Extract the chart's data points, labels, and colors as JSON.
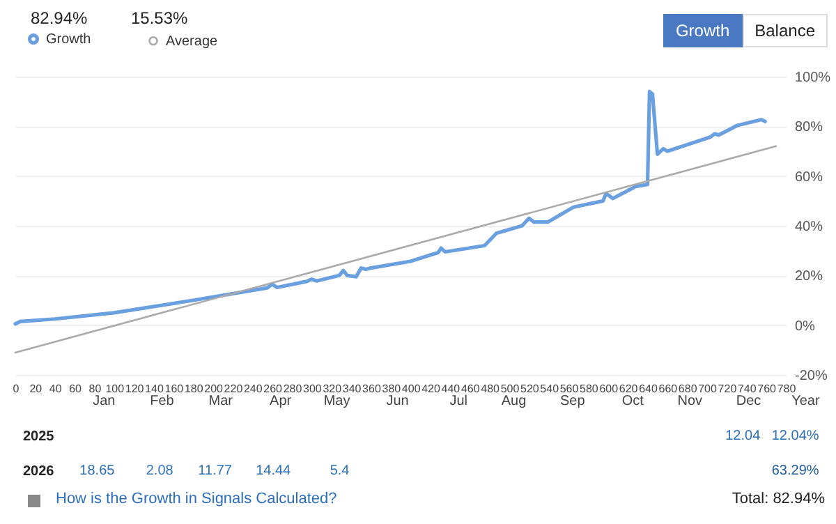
{
  "chart_data": [
    {
      "type": "line",
      "annotations": [
        "82.94%",
        "15.53%",
        "Growth",
        "Balance"
      ],
      "xlim": [
        0,
        780
      ],
      "xticks": [
        0,
        20,
        40,
        60,
        80,
        100,
        120,
        140,
        160,
        180,
        200,
        220,
        240,
        260,
        280,
        300,
        320,
        340,
        360,
        380,
        400,
        420,
        440,
        460,
        480,
        500,
        520,
        540,
        560,
        580,
        600,
        620,
        640,
        660,
        680,
        700,
        720,
        740,
        760,
        780
      ],
      "ylim": [
        -20,
        100
      ],
      "yticks": [
        {
          "value": -20,
          "label": "-20%"
        },
        {
          "value": 0,
          "label": "0%"
        },
        {
          "value": 20,
          "label": "20%"
        },
        {
          "value": 40,
          "label": "40%"
        },
        {
          "value": 60,
          "label": "60%"
        },
        {
          "value": 80,
          "label": "80%"
        },
        {
          "value": 100,
          "label": "100%"
        }
      ],
      "grid": "y",
      "legend": "top left",
      "series": [
        {
          "name": "Growth",
          "color": "#6a9fe0",
          "x": [
            0,
            5,
            40,
            100,
            180,
            255,
            260,
            265,
            295,
            300,
            305,
            328,
            332,
            336,
            345,
            350,
            355,
            360,
            400,
            428,
            431,
            435,
            475,
            487,
            513,
            520,
            525,
            539,
            565,
            595,
            598,
            605,
            628,
            640,
            642,
            645,
            650,
            656,
            660,
            703,
            708,
            712,
            731,
            755,
            759
          ],
          "values": [
            0.5,
            1.5,
            2.5,
            5,
            10,
            15,
            16.5,
            15.2,
            17.6,
            18.5,
            17.8,
            20,
            22,
            20,
            19.5,
            23,
            22.5,
            23,
            25.7,
            29.2,
            31,
            29.5,
            32,
            37,
            40,
            43,
            41.5,
            41.5,
            47.5,
            50,
            53,
            51,
            55.8,
            56.6,
            94,
            93,
            68.8,
            71,
            70,
            75.6,
            77,
            76.5,
            80.4,
            82.7,
            82
          ]
        },
        {
          "name": "Average",
          "color": "#aaaaaa",
          "x": [
            0,
            770
          ],
          "values": [
            -11,
            72
          ]
        }
      ]
    },
    {
      "type": "heatmap",
      "categories": [
        "Jan",
        "Feb",
        "Mar",
        "Apr",
        "May",
        "Jun",
        "Jul",
        "Aug",
        "Sep",
        "Oct",
        "Nov",
        "Dec",
        "Year"
      ],
      "y_categories": [
        "2025",
        "2026"
      ],
      "cells": [
        [
          null,
          null,
          null,
          null,
          null,
          null,
          null,
          null,
          null,
          null,
          null,
          12.04,
          12.04
        ],
        [
          18.65,
          2.08,
          11.77,
          14.44,
          5.4,
          null,
          null,
          null,
          null,
          null,
          null,
          null,
          63.29
        ]
      ],
      "cell_labels": [
        [
          null,
          null,
          null,
          null,
          null,
          null,
          null,
          null,
          null,
          null,
          null,
          "12.04",
          "12.04%"
        ],
        [
          "18.65",
          "2.08",
          "11.77",
          "14.44",
          "5.4",
          null,
          null,
          null,
          null,
          null,
          null,
          null,
          "63.29%"
        ]
      ],
      "annotations": [
        "How is the Growth in Signals Calculated?",
        "Total: 82.94%"
      ]
    }
  ]
}
